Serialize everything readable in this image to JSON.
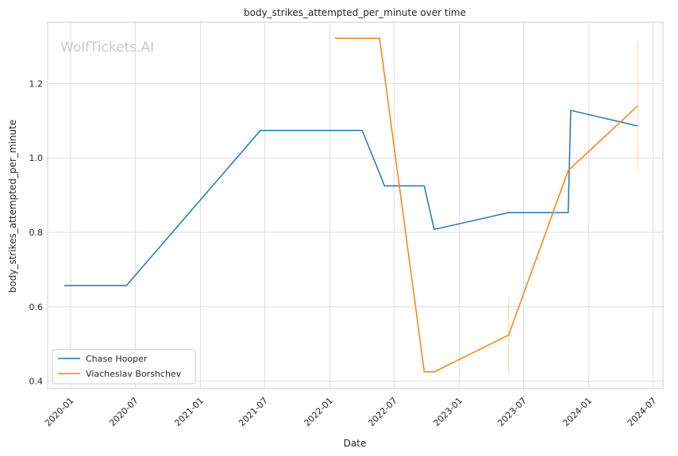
{
  "chart_data": {
    "type": "line",
    "title": "body_strikes_attempted_per_minute over time",
    "xlabel": "Date",
    "ylabel": "body_strikes_attempted_per_minute",
    "watermark": "WolfTickets.AI",
    "x_ticks": [
      "2020-01",
      "2020-07",
      "2021-01",
      "2021-07",
      "2022-01",
      "2022-07",
      "2023-01",
      "2023-07",
      "2024-01",
      "2024-07"
    ],
    "y_ticks": [
      "0.4",
      "0.6",
      "0.8",
      "1.0",
      "1.2"
    ],
    "xlim": [
      "2019-10-28",
      "2024-07-28"
    ],
    "ylim": [
      0.38,
      1.365
    ],
    "grid": true,
    "legend_position": "lower-left",
    "series": [
      {
        "name": "Chase Hooper",
        "color": "#1f77b4",
        "points": [
          [
            "2019-12-14",
            0.657
          ],
          [
            "2020-06-06",
            0.657
          ],
          [
            "2021-06-19",
            1.074
          ],
          [
            "2022-04-02",
            1.074
          ],
          [
            "2022-06-04",
            0.925
          ],
          [
            "2022-09-24",
            0.925
          ],
          [
            "2022-10-22",
            0.808
          ],
          [
            "2023-05-20",
            0.853
          ],
          [
            "2023-11-04",
            0.853
          ],
          [
            "2023-11-11",
            1.128
          ],
          [
            "2024-05-18",
            1.086
          ]
        ]
      },
      {
        "name": "Viacheslav Borshchev",
        "color": "#ff7f0e",
        "points": [
          [
            "2022-01-15",
            1.322
          ],
          [
            "2022-05-21",
            1.322
          ],
          [
            "2022-09-24",
            0.425
          ],
          [
            "2022-10-22",
            0.425
          ],
          [
            "2023-05-20",
            0.524
          ],
          [
            "2023-11-04",
            0.966
          ],
          [
            "2024-05-18",
            1.14
          ]
        ],
        "error_bars": [
          {
            "x": "2023-05-20",
            "low": 0.42,
            "high": 0.625
          },
          {
            "x": "2024-05-18",
            "low": 0.965,
            "high": 1.315
          }
        ]
      }
    ]
  }
}
